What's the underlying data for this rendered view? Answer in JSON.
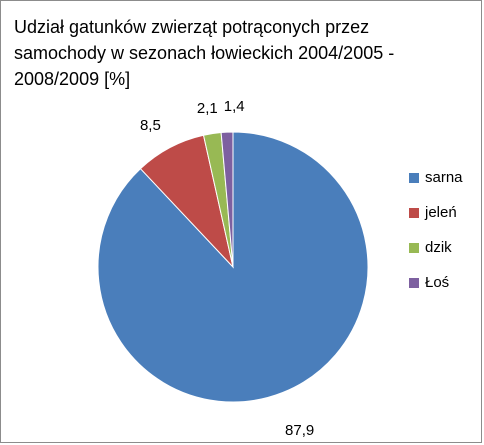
{
  "chart_data": {
    "type": "pie",
    "title": "Udział gatunków zwierząt potrąconych przez samochody  w sezonach łowieckich 2004/2005 - 2008/2009 [%]",
    "categories": [
      "sarna",
      "jeleń",
      "dzik",
      "Łoś"
    ],
    "values": [
      87.9,
      8.5,
      2.1,
      1.4
    ],
    "data_labels": [
      "87,9",
      "8,5",
      "2,1",
      "1,4"
    ],
    "colors": [
      "#4a7ebb",
      "#be4b48",
      "#98b954",
      "#7d60a0"
    ],
    "legend_position": "right",
    "start_angle": "12 o'clock",
    "direction": "clockwise"
  }
}
